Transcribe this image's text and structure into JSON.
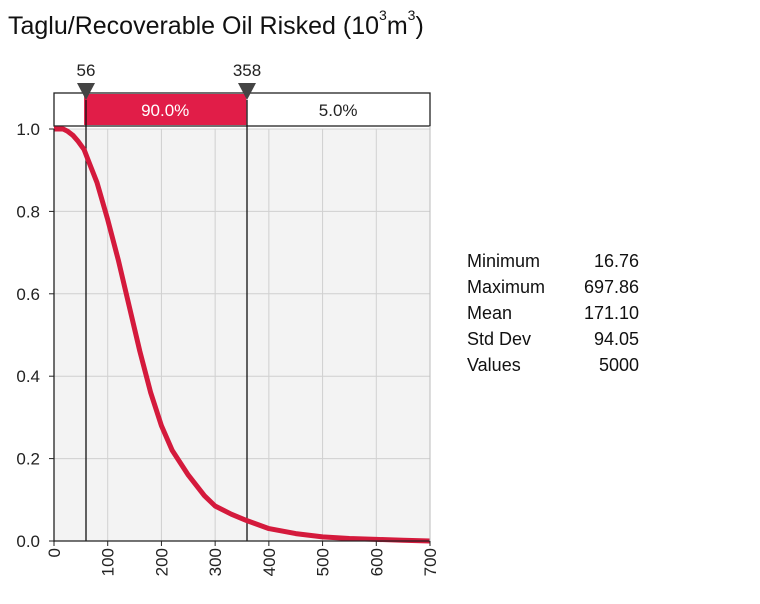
{
  "title": {
    "text": "Taglu/Recoverable Oil Risked (10",
    "sup1": "3",
    "mid": "m",
    "sup2": "3",
    "end": ")"
  },
  "colors": {
    "curve": "#d41a3c",
    "band_fill": "#e11d48",
    "plot_bg": "#f3f3f3",
    "grid": "#d0d0d0"
  },
  "delimiters": {
    "left": {
      "value": 56,
      "label": "56"
    },
    "right": {
      "value": 358,
      "label": "358"
    },
    "bands": [
      {
        "label": "90.0%",
        "highlighted": true
      },
      {
        "label": "5.0%",
        "highlighted": false
      }
    ]
  },
  "chart_data": {
    "type": "line",
    "curve_kind": "descending cumulative",
    "title": "Taglu/Recoverable Oil Risked (10^3 m^3)",
    "xlim": [
      0,
      700
    ],
    "ylim": [
      0,
      1.0
    ],
    "xticks": [
      0,
      100,
      200,
      300,
      400,
      500,
      600,
      700
    ],
    "yticks": [
      0.0,
      0.2,
      0.4,
      0.6,
      0.8,
      1.0
    ],
    "ytick_labels": [
      "0.0",
      "0.2",
      "0.4",
      "0.6",
      "0.8",
      "1.0"
    ],
    "grid": true,
    "series": [
      {
        "x": [
          0,
          17,
          25,
          35,
          45,
          56,
          65,
          80,
          100,
          120,
          140,
          160,
          180,
          200,
          220,
          250,
          280,
          300,
          330,
          358,
          400,
          450,
          500,
          550,
          600,
          650,
          700
        ],
        "y": [
          1.0,
          1.0,
          0.995,
          0.985,
          0.97,
          0.95,
          0.92,
          0.87,
          0.78,
          0.68,
          0.57,
          0.46,
          0.36,
          0.28,
          0.22,
          0.16,
          0.11,
          0.085,
          0.065,
          0.05,
          0.03,
          0.018,
          0.01,
          0.006,
          0.004,
          0.002,
          0.0
        ]
      }
    ]
  },
  "stats": [
    {
      "label": "Minimum",
      "value": "16.76"
    },
    {
      "label": "Maximum",
      "value": "697.86"
    },
    {
      "label": "Mean",
      "value": "171.10"
    },
    {
      "label": "Std Dev",
      "value": "94.05"
    },
    {
      "label": "Values",
      "value": "5000"
    }
  ]
}
